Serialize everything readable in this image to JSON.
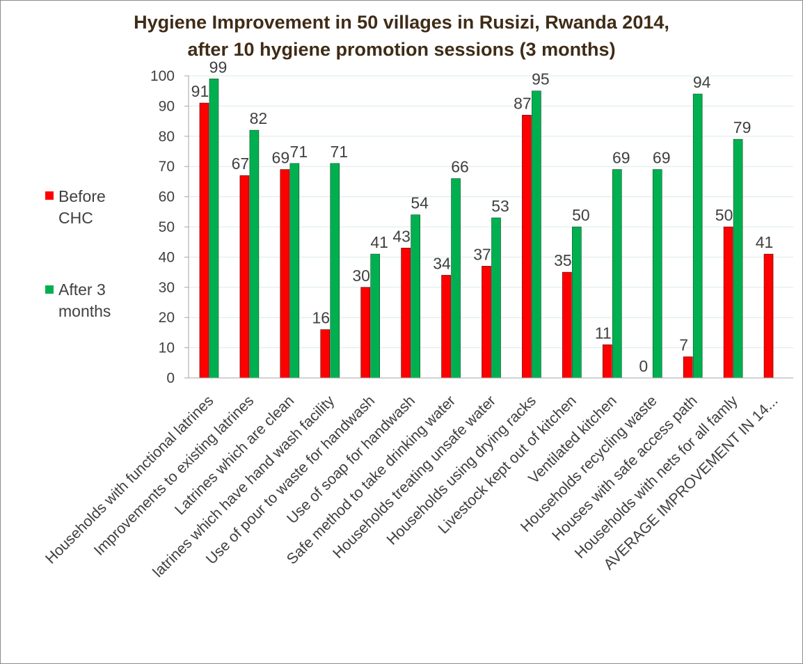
{
  "chart_data": {
    "type": "bar",
    "title": [
      "Hygiene Improvement  in 50 villages in Rusizi, Rwanda 2014,",
      "after 10 hygiene promotion sessions (3 months)"
    ],
    "categories": [
      "Households with functional latrines",
      "Improvements to existing latrines",
      "Latrines which are clean",
      "latrines which have hand wash facility",
      "Use of pour to waste for handwash",
      "Use of soap for handwash",
      "Safe method to take drinking water",
      "Households treating unsafe water",
      "Households using drying racks",
      "Livestock kept out of kitchen",
      "Ventilated kitchen",
      "Households recycling waste",
      "Houses with safe access path",
      "Households with nets for all famly",
      "AVERAGE IMPROVEMENT IN 14..."
    ],
    "series": [
      {
        "name": "Before CHC",
        "legend_lines": [
          "Before",
          "CHC"
        ],
        "color": "#ff0000",
        "values": [
          91,
          67,
          69,
          16,
          30,
          43,
          34,
          37,
          87,
          35,
          11,
          0,
          7,
          50,
          41
        ]
      },
      {
        "name": "After 3 months",
        "legend_lines": [
          "After 3",
          "months"
        ],
        "color": "#00b050",
        "values": [
          99,
          82,
          71,
          71,
          41,
          54,
          66,
          53,
          95,
          50,
          69,
          69,
          94,
          79,
          null
        ]
      }
    ],
    "xlabel": "",
    "ylabel": "",
    "ylim": [
      0,
      100
    ],
    "yticks": [
      0,
      10,
      20,
      30,
      40,
      50,
      60,
      70,
      80,
      90,
      100
    ],
    "grid": true,
    "legend_position": "left",
    "colors": {
      "title": "#3f2c17",
      "text": "#404040",
      "grid": "#d9ece6",
      "axis": "#a6a6a6"
    }
  }
}
